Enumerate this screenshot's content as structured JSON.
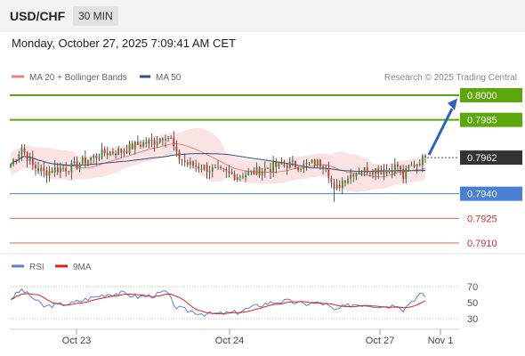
{
  "header": {
    "pair": "USD/CHF",
    "timeframe": "30 MIN",
    "datetime": "Monday, October 27, 2025 7:09:41 AM CET"
  },
  "credit": "Research © 2025 Trading Central",
  "colors": {
    "resistance": "#5aa80a",
    "support": "#4a7fd6",
    "target_support": "#e06060",
    "price_box": "#333333",
    "arrow": "#2e64b5",
    "rsi": "#5a80d8",
    "rsi_ma": "#e02020",
    "candle_up": "#3a8a2a",
    "candle_down": "#c0392b"
  },
  "chart_data": [
    {
      "type": "candlestick",
      "legend": [
        {
          "label": "MA 20 + Bollinger Bands",
          "color": "#f08080"
        },
        {
          "label": "MA 50",
          "color": "#2c5282"
        }
      ],
      "ylim": [
        0.79,
        0.801
      ],
      "x_ticks": [
        "Oct 23",
        "Oct 24",
        "Oct 27",
        "Nov 1"
      ],
      "levels": [
        {
          "value": 0.791,
          "label": "0.7910",
          "kind": "support"
        },
        {
          "value": 0.7925,
          "label": "0.7925",
          "kind": "support"
        },
        {
          "value": 0.794,
          "label": "0.7940",
          "kind": "pivot"
        },
        {
          "value": 0.7962,
          "label": "0.7962",
          "kind": "last"
        },
        {
          "value": 0.7985,
          "label": "0.7985",
          "kind": "resistance"
        },
        {
          "value": 0.8,
          "label": "0.8000",
          "kind": "resistance"
        }
      ],
      "anchors": [
        [
          0,
          0.7958
        ],
        [
          4,
          0.7968
        ],
        [
          8,
          0.7957
        ],
        [
          12,
          0.7953
        ],
        [
          16,
          0.7955
        ],
        [
          22,
          0.7956
        ],
        [
          28,
          0.7961
        ],
        [
          34,
          0.7965
        ],
        [
          40,
          0.7966
        ],
        [
          46,
          0.797
        ],
        [
          52,
          0.7972
        ],
        [
          56,
          0.7976
        ],
        [
          58,
          0.7973
        ],
        [
          60,
          0.7963
        ],
        [
          64,
          0.7958
        ],
        [
          70,
          0.7956
        ],
        [
          76,
          0.7953
        ],
        [
          82,
          0.7951
        ],
        [
          88,
          0.7953
        ],
        [
          94,
          0.7956
        ],
        [
          100,
          0.7958
        ],
        [
          106,
          0.7957
        ],
        [
          110,
          0.7959
        ],
        [
          114,
          0.7958
        ],
        [
          117,
          0.7941
        ],
        [
          120,
          0.7948
        ],
        [
          124,
          0.7953
        ],
        [
          130,
          0.7955
        ],
        [
          136,
          0.7954
        ],
        [
          140,
          0.7957
        ],
        [
          142,
          0.795
        ],
        [
          144,
          0.7956
        ],
        [
          148,
          0.796
        ],
        [
          150,
          0.7962
        ]
      ]
    },
    {
      "type": "line",
      "legend": [
        {
          "label": "RSI",
          "color": "#5a80d8"
        },
        {
          "label": "9MA",
          "color": "#e02020"
        }
      ],
      "ylim": [
        20,
        80
      ],
      "y_ticks": [
        30,
        50,
        70
      ],
      "rsi_anchors": [
        [
          0,
          55
        ],
        [
          4,
          66
        ],
        [
          8,
          56
        ],
        [
          12,
          45
        ],
        [
          16,
          47
        ],
        [
          22,
          49
        ],
        [
          28,
          55
        ],
        [
          34,
          60
        ],
        [
          40,
          62
        ],
        [
          46,
          57
        ],
        [
          52,
          59
        ],
        [
          56,
          64
        ],
        [
          60,
          44
        ],
        [
          64,
          40
        ],
        [
          70,
          36
        ],
        [
          76,
          36
        ],
        [
          82,
          38
        ],
        [
          88,
          45
        ],
        [
          94,
          50
        ],
        [
          100,
          52
        ],
        [
          106,
          48
        ],
        [
          110,
          50
        ],
        [
          114,
          48
        ],
        [
          117,
          40
        ],
        [
          120,
          44
        ],
        [
          124,
          48
        ],
        [
          130,
          47
        ],
        [
          136,
          45
        ],
        [
          140,
          48
        ],
        [
          142,
          41
        ],
        [
          144,
          49
        ],
        [
          148,
          60
        ],
        [
          150,
          58
        ]
      ]
    }
  ]
}
